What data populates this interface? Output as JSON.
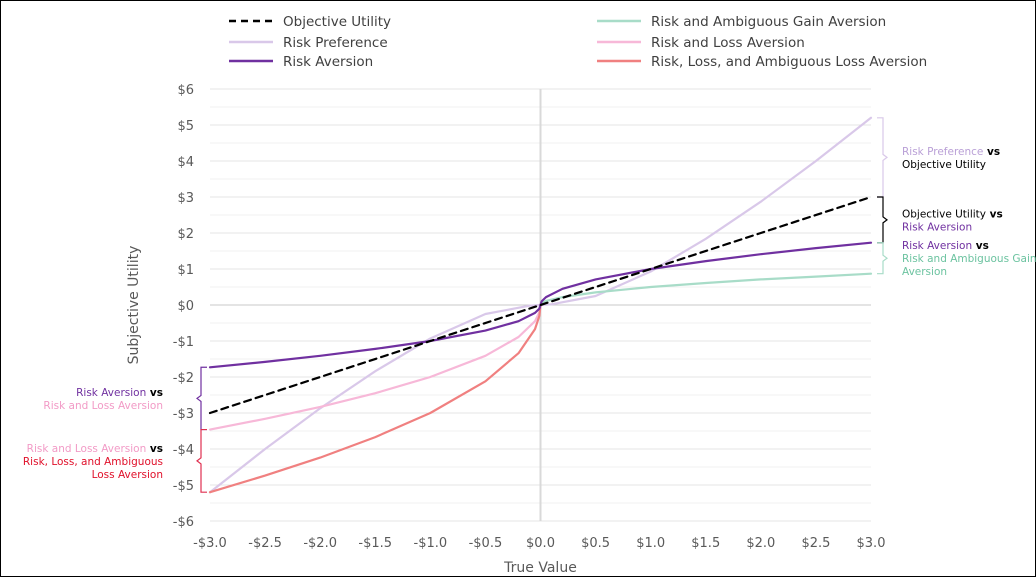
{
  "chart_data": {
    "type": "line",
    "xlabel": "True Value",
    "ylabel": "Subjective Utility",
    "xlim": [
      -3,
      3
    ],
    "ylim": [
      -6,
      6
    ],
    "x_ticks": [
      "-$3.0",
      "-$2.5",
      "-$2.0",
      "-$1.5",
      "-$1.0",
      "-$0.5",
      "$0.0",
      "$0.5",
      "$1.0",
      "$1.5",
      "$2.0",
      "$2.5",
      "$3.0"
    ],
    "y_ticks": [
      "$6",
      "$5",
      "$4",
      "$3",
      "$2",
      "$1",
      "$0",
      "-$1",
      "-$2",
      "-$3",
      "-$4",
      "-$5",
      "-$6"
    ],
    "grid": true,
    "legend_position": "top",
    "series": [
      {
        "name": "Objective Utility",
        "color": "#000000",
        "dash": true,
        "x": [
          -3.0,
          -2.0,
          -1.0,
          0.0,
          1.0,
          2.0,
          3.0
        ],
        "y": [
          -3.0,
          -2.0,
          -1.0,
          0.0,
          1.0,
          2.0,
          3.0
        ]
      },
      {
        "name": "Risk Preference",
        "color": "#d9c8e9",
        "dash": false,
        "x": [
          -3.0,
          -2.5,
          -2.0,
          -1.5,
          -1.0,
          -0.5,
          -0.1,
          0.0,
          0.1,
          0.5,
          1.0,
          1.5,
          2.0,
          2.5,
          3.0
        ],
        "y": [
          -5.2,
          -4.0,
          -2.87,
          -1.84,
          -0.93,
          -0.25,
          -0.02,
          0.0,
          0.02,
          0.25,
          0.93,
          1.84,
          2.87,
          4.0,
          5.2
        ]
      },
      {
        "name": "Risk Aversion",
        "color": "#7030a0",
        "dash": false,
        "x": [
          -3.0,
          -2.5,
          -2.0,
          -1.5,
          -1.0,
          -0.5,
          -0.2,
          -0.05,
          -0.01,
          0.0,
          0.01,
          0.05,
          0.2,
          0.5,
          1.0,
          1.5,
          2.0,
          2.5,
          3.0
        ],
        "y": [
          -1.73,
          -1.58,
          -1.41,
          -1.22,
          -1.0,
          -0.71,
          -0.45,
          -0.22,
          -0.1,
          0.0,
          0.1,
          0.22,
          0.45,
          0.71,
          1.0,
          1.22,
          1.41,
          1.58,
          1.73
        ]
      },
      {
        "name": "Risk and Ambiguous Gain Aversion",
        "color": "#a8dcc8",
        "dash": false,
        "x": [
          0.0,
          0.01,
          0.05,
          0.2,
          0.5,
          1.0,
          1.5,
          2.0,
          2.5,
          3.0
        ],
        "y": [
          0.0,
          0.05,
          0.11,
          0.22,
          0.35,
          0.5,
          0.61,
          0.71,
          0.79,
          0.87
        ]
      },
      {
        "name": "Risk and Loss Aversion",
        "color": "#f7b8d8",
        "dash": false,
        "x": [
          -3.0,
          -2.5,
          -2.0,
          -1.5,
          -1.0,
          -0.5,
          -0.2,
          -0.05,
          -0.01,
          0.0
        ],
        "y": [
          -3.46,
          -3.16,
          -2.83,
          -2.45,
          -2.0,
          -1.41,
          -0.89,
          -0.45,
          -0.2,
          0.0
        ]
      },
      {
        "name": "Risk, Loss, and Ambiguous Loss Aversion",
        "color": "#f08080",
        "dash": false,
        "x": [
          -3.0,
          -2.5,
          -2.0,
          -1.5,
          -1.0,
          -0.5,
          -0.2,
          -0.05,
          -0.01,
          0.0
        ],
        "y": [
          -5.2,
          -4.74,
          -4.24,
          -3.67,
          -3.0,
          -2.12,
          -1.34,
          -0.67,
          -0.3,
          0.0
        ]
      }
    ],
    "legend": [
      {
        "label": "Objective Utility",
        "color": "#000000",
        "dash": true
      },
      {
        "label": "Risk Preference",
        "color": "#d9c8e9",
        "dash": false
      },
      {
        "label": "Risk Aversion",
        "color": "#7030a0",
        "dash": false
      },
      {
        "label": "Risk and Ambiguous Gain Aversion",
        "color": "#a8dcc8",
        "dash": false
      },
      {
        "label": "Risk and Loss Aversion",
        "color": "#f7b8d8",
        "dash": false
      },
      {
        "label": "Risk, Loss, and Ambiguous Loss Aversion",
        "color": "#f08080",
        "dash": false
      }
    ],
    "annotations": [
      {
        "side": "right",
        "y_top": 5.2,
        "y_bottom": 3.0,
        "bracket_color": "#d9c8e9",
        "lines": [
          [
            {
              "text": "Risk Preference",
              "color": "#b99fd6"
            },
            {
              "text": " vs",
              "color": "#000000",
              "bold": true
            }
          ],
          [
            {
              "text": "Objective Utility",
              "color": "#000000"
            }
          ]
        ]
      },
      {
        "side": "right",
        "y_top": 3.0,
        "y_bottom": 1.73,
        "bracket_color": "#000000",
        "lines": [
          [
            {
              "text": "Objective Utility",
              "color": "#000000"
            },
            {
              "text": " vs",
              "color": "#000000",
              "bold": true
            }
          ],
          [
            {
              "text": "Risk Aversion",
              "color": "#7030a0"
            }
          ]
        ]
      },
      {
        "side": "right",
        "y_top": 1.73,
        "y_bottom": 0.87,
        "bracket_color": "#a8dcc8",
        "lines": [
          [
            {
              "text": "Risk Aversion",
              "color": "#7030a0"
            },
            {
              "text": " vs",
              "color": "#000000",
              "bold": true
            }
          ],
          [
            {
              "text": "Risk and Ambiguous Gain",
              "color": "#6cc3a0"
            }
          ],
          [
            {
              "text": "Aversion",
              "color": "#6cc3a0"
            }
          ]
        ]
      },
      {
        "side": "left",
        "y_top": -1.73,
        "y_bottom": -3.46,
        "bracket_color": "#7030a0",
        "lines": [
          [
            {
              "text": "Risk Aversion",
              "color": "#7030a0"
            },
            {
              "text": " vs",
              "color": "#000000",
              "bold": true
            }
          ],
          [
            {
              "text": "Risk and Loss Aversion",
              "color": "#f29ac6"
            }
          ]
        ]
      },
      {
        "side": "left",
        "y_top": -3.46,
        "y_bottom": -5.2,
        "bracket_color": "#e03050",
        "lines": [
          [
            {
              "text": "Risk and Loss Aversion",
              "color": "#f29ac6"
            },
            {
              "text": " vs",
              "color": "#000000",
              "bold": true
            }
          ],
          [
            {
              "text": "Risk, Loss, and Ambiguous",
              "color": "#e0102a"
            }
          ],
          [
            {
              "text": "Loss Aversion",
              "color": "#e0102a"
            }
          ]
        ]
      }
    ]
  }
}
